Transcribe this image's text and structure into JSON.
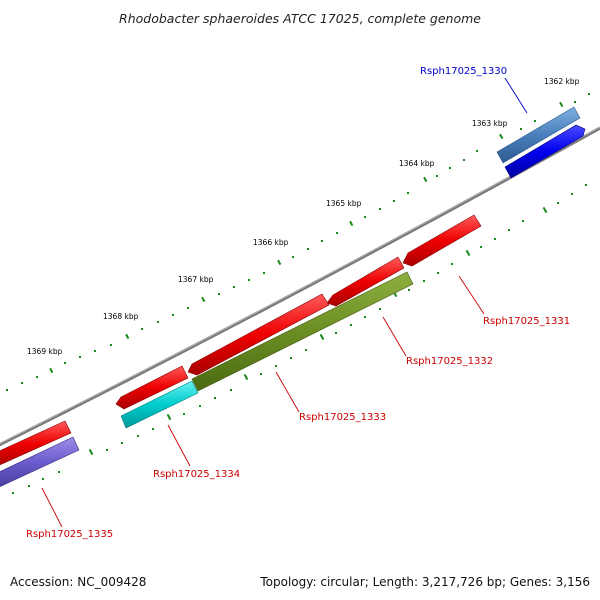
{
  "title": "Rhodobacter sphaeroides ATCC 17025, complete genome",
  "footer": {
    "accession": "Accession: NC_009428",
    "summary": "Topology: circular; Length: 3,217,726 bp; Genes: 3,156"
  },
  "kbp_labels": [
    "1362 kbp",
    "1363 kbp",
    "1364 kbp",
    "1365 kbp",
    "1366 kbp",
    "1367 kbp",
    "1368 kbp",
    "1369 kbp"
  ],
  "genes": [
    {
      "name": "Rsph17025_1330",
      "color": "#0000cc",
      "strand": "forward",
      "colors": [
        "#4a7fbd",
        "#0000ee"
      ]
    },
    {
      "name": "Rsph17025_1331",
      "color": "#cc0000",
      "strand": "reverse",
      "colors": [
        "#ee0000"
      ]
    },
    {
      "name": "Rsph17025_1332",
      "color": "#cc0000",
      "strand": "reverse",
      "colors": [
        "#ee0000",
        "#6b8e23"
      ]
    },
    {
      "name": "Rsph17025_1333",
      "color": "#cc0000",
      "strand": "reverse",
      "colors": [
        "#ee0000"
      ]
    },
    {
      "name": "Rsph17025_1334",
      "color": "#cc0000",
      "strand": "reverse",
      "colors": [
        "#ee0000",
        "#00cccc"
      ]
    },
    {
      "name": "Rsph17025_1335",
      "color": "#cc0000",
      "strand": "reverse",
      "colors": [
        "#ee0000",
        "#6a5acd"
      ]
    }
  ],
  "colors": {
    "backbone": "#777777",
    "tick": "#1a8a1a",
    "forward_gene": "#ee0000",
    "reverse_gene": "#6b8e23",
    "accent_blue": "#0000ee",
    "accent_cyan": "#00cccc",
    "accent_purple": "#6a5acd",
    "accent_steel": "#4a7fbd"
  }
}
